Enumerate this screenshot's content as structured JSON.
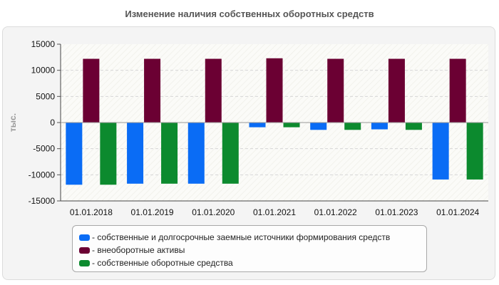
{
  "chart_data": {
    "type": "bar",
    "title": "Изменение наличия собственных оборотных средств",
    "ylabel": "тыс.",
    "xlabel": "",
    "ylim": [
      -15000,
      15000
    ],
    "yticks": [
      15000,
      10000,
      5000,
      0,
      -5000,
      -10000,
      -15000
    ],
    "categories": [
      "01.01.2018",
      "01.01.2019",
      "01.01.2020",
      "01.01.2021",
      "01.01.2022",
      "01.01.2023",
      "01.01.2024"
    ],
    "series": [
      {
        "name": "- собственные и долгосрочные заемные источники формирования средств",
        "color": "#0a6cf5",
        "values": [
          -11900,
          -11700,
          -11700,
          -900,
          -1400,
          -1300,
          -10900
        ]
      },
      {
        "name": "- внеоборотные активы",
        "color": "#6b0033",
        "values": [
          12200,
          12200,
          12200,
          12300,
          12200,
          12200,
          12200
        ]
      },
      {
        "name": "- собственные оборотные средства",
        "color": "#0c8a2e",
        "values": [
          -11900,
          -11700,
          -11700,
          -900,
          -1400,
          -1400,
          -10900
        ]
      }
    ],
    "grid": true,
    "legend_position": "bottom"
  }
}
